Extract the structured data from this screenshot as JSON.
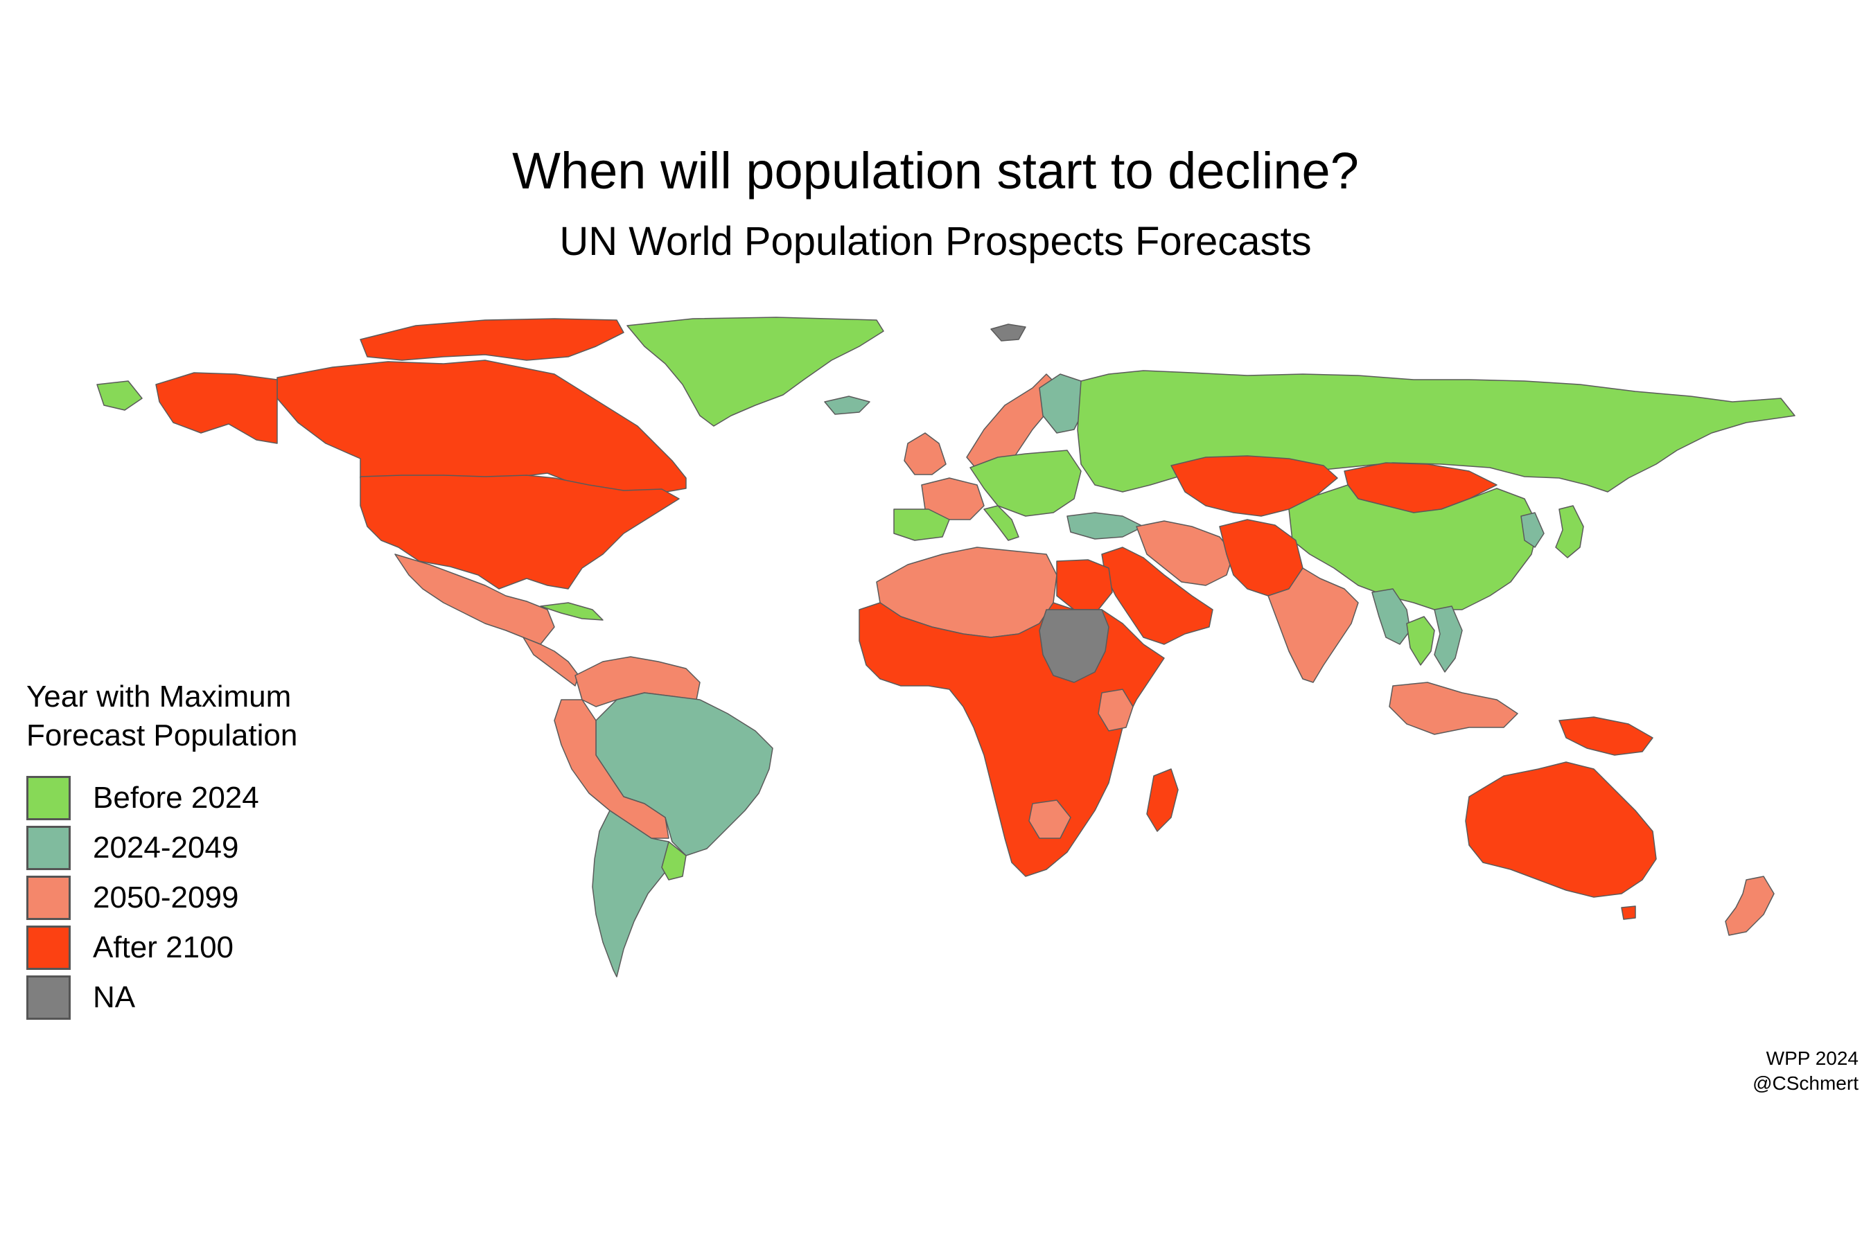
{
  "title": "When will population start to decline?",
  "subtitle": "UN World Population Prospects Forecasts",
  "legend": {
    "title": "Year with Maximum\nForecast Population",
    "items": [
      {
        "label": "Before 2024",
        "color": "#87d957"
      },
      {
        "label": "2024-2049",
        "color": "#80bb9e"
      },
      {
        "label": "2050-2099",
        "color": "#f4876b"
      },
      {
        "label": "After 2100",
        "color": "#fc4112"
      },
      {
        "label": "NA",
        "color": "#7f7f7f"
      }
    ]
  },
  "caption": {
    "line1": "WPP 2024",
    "line2": "@CSchmert"
  },
  "map": {
    "border_color": "#5a5a5a",
    "regions": [
      {
        "name": "greenland",
        "category": "Before 2024"
      },
      {
        "name": "canada",
        "category": "After 2100"
      },
      {
        "name": "canadian-arctic-islands",
        "category": "After 2100"
      },
      {
        "name": "alaska",
        "category": "After 2100"
      },
      {
        "name": "alaska-west-tip",
        "category": "Before 2024"
      },
      {
        "name": "united-states",
        "category": "After 2100"
      },
      {
        "name": "mexico",
        "category": "2050-2099"
      },
      {
        "name": "central-america",
        "category": "2050-2099"
      },
      {
        "name": "cuba",
        "category": "Before 2024"
      },
      {
        "name": "northern-south-america",
        "category": "2050-2099"
      },
      {
        "name": "brazil",
        "category": "2024-2049"
      },
      {
        "name": "peru-bolivia",
        "category": "2050-2099"
      },
      {
        "name": "chile-argentina",
        "category": "2024-2049"
      },
      {
        "name": "uruguay",
        "category": "Before 2024"
      },
      {
        "name": "iceland",
        "category": "2024-2049"
      },
      {
        "name": "scandinavia",
        "category": "2050-2099"
      },
      {
        "name": "finland",
        "category": "2024-2049"
      },
      {
        "name": "united-kingdom",
        "category": "2050-2099"
      },
      {
        "name": "france",
        "category": "2050-2099"
      },
      {
        "name": "iberia",
        "category": "Before 2024"
      },
      {
        "name": "central-europe",
        "category": "Before 2024"
      },
      {
        "name": "italy",
        "category": "Before 2024"
      },
      {
        "name": "turkey",
        "category": "2024-2049"
      },
      {
        "name": "russia",
        "category": "Before 2024"
      },
      {
        "name": "kazakhstan-central-asia",
        "category": "After 2100"
      },
      {
        "name": "mongolia",
        "category": "After 2100"
      },
      {
        "name": "china",
        "category": "Before 2024"
      },
      {
        "name": "korea",
        "category": "2024-2049"
      },
      {
        "name": "japan",
        "category": "Before 2024"
      },
      {
        "name": "iran",
        "category": "2050-2099"
      },
      {
        "name": "afghanistan-pakistan",
        "category": "After 2100"
      },
      {
        "name": "india",
        "category": "2050-2099"
      },
      {
        "name": "myanmar",
        "category": "2024-2049"
      },
      {
        "name": "thailand",
        "category": "Before 2024"
      },
      {
        "name": "vietnam",
        "category": "2024-2049"
      },
      {
        "name": "maritime-southeast-asia",
        "category": "2050-2099"
      },
      {
        "name": "papua-new-guinea",
        "category": "After 2100"
      },
      {
        "name": "arabian-peninsula",
        "category": "After 2100"
      },
      {
        "name": "north-africa",
        "category": "2050-2099"
      },
      {
        "name": "egypt",
        "category": "After 2100"
      },
      {
        "name": "sub-saharan-africa",
        "category": "After 2100"
      },
      {
        "name": "sudan",
        "category": "NA"
      },
      {
        "name": "kenya",
        "category": "2050-2099"
      },
      {
        "name": "botswana",
        "category": "2050-2099"
      },
      {
        "name": "madagascar",
        "category": "After 2100"
      },
      {
        "name": "australia",
        "category": "After 2100"
      },
      {
        "name": "tasmania",
        "category": "After 2100"
      },
      {
        "name": "new-zealand",
        "category": "2050-2099"
      },
      {
        "name": "svalbard",
        "category": "NA"
      }
    ]
  }
}
